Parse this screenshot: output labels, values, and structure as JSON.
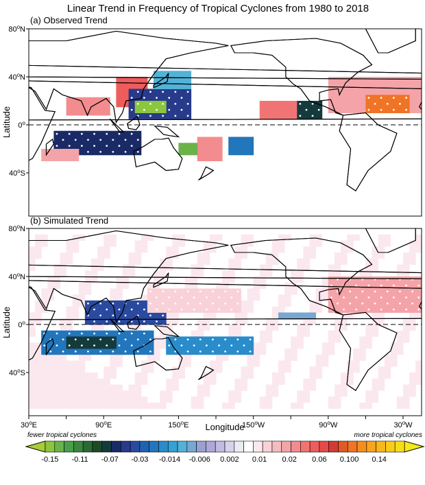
{
  "title": "Linear Trend in Frequency of Tropical Cyclones from 1980 to 2018",
  "panels": [
    {
      "label": "(a) Observed Trend"
    },
    {
      "label": "(b) Simulated Trend"
    }
  ],
  "y_axis": {
    "label": "Latitude",
    "ticks": [
      {
        "v": "80",
        "h": "N"
      },
      {
        "v": "40",
        "h": "N"
      },
      {
        "v": "0",
        "h": ""
      },
      {
        "v": "40",
        "h": "S"
      }
    ]
  },
  "x_axis": {
    "label": "Longitude",
    "ticks": [
      {
        "v": "30",
        "h": "E"
      },
      {
        "v": "90",
        "h": "E"
      },
      {
        "v": "150",
        "h": "E"
      },
      {
        "v": "150",
        "h": "W"
      },
      {
        "v": "90",
        "h": "W"
      },
      {
        "v": "30",
        "h": "W"
      }
    ]
  },
  "colorbar": {
    "left_note": "fewer tropical cyclones",
    "right_note": "more tropical cyclones",
    "labels": [
      "-0.15",
      "-0.11",
      "-0.07",
      "-0.03",
      "-0.014",
      "-0.006",
      "0.002",
      "0.01",
      "0.02",
      "0.06",
      "0.100",
      "0.14"
    ],
    "low_color": "#a8cc3a",
    "high_color": "#f4e81c",
    "colors": [
      "#8cc63f",
      "#6ab24a",
      "#4a9e48",
      "#3a8640",
      "#2a6a35",
      "#1e4a28",
      "#153a3c",
      "#1a2a66",
      "#283a8a",
      "#2a4aa0",
      "#2062b2",
      "#2276bc",
      "#2a8cca",
      "#34a2d4",
      "#52b2d8",
      "#78a8d2",
      "#98a2d0",
      "#ada8d8",
      "#c0bce2",
      "#d6d2ec",
      "#ecebf3",
      "#ffffff",
      "#fbe8ee",
      "#f8d2d8",
      "#f5bcc0",
      "#f4a4a8",
      "#f38c8e",
      "#f17474",
      "#ee5c5c",
      "#e64a48",
      "#d23c34",
      "#e05a28",
      "#f07426",
      "#f58e20",
      "#f8a41e",
      "#f8b81c",
      "#f8cc1a",
      "#f7dc18"
    ]
  }
}
